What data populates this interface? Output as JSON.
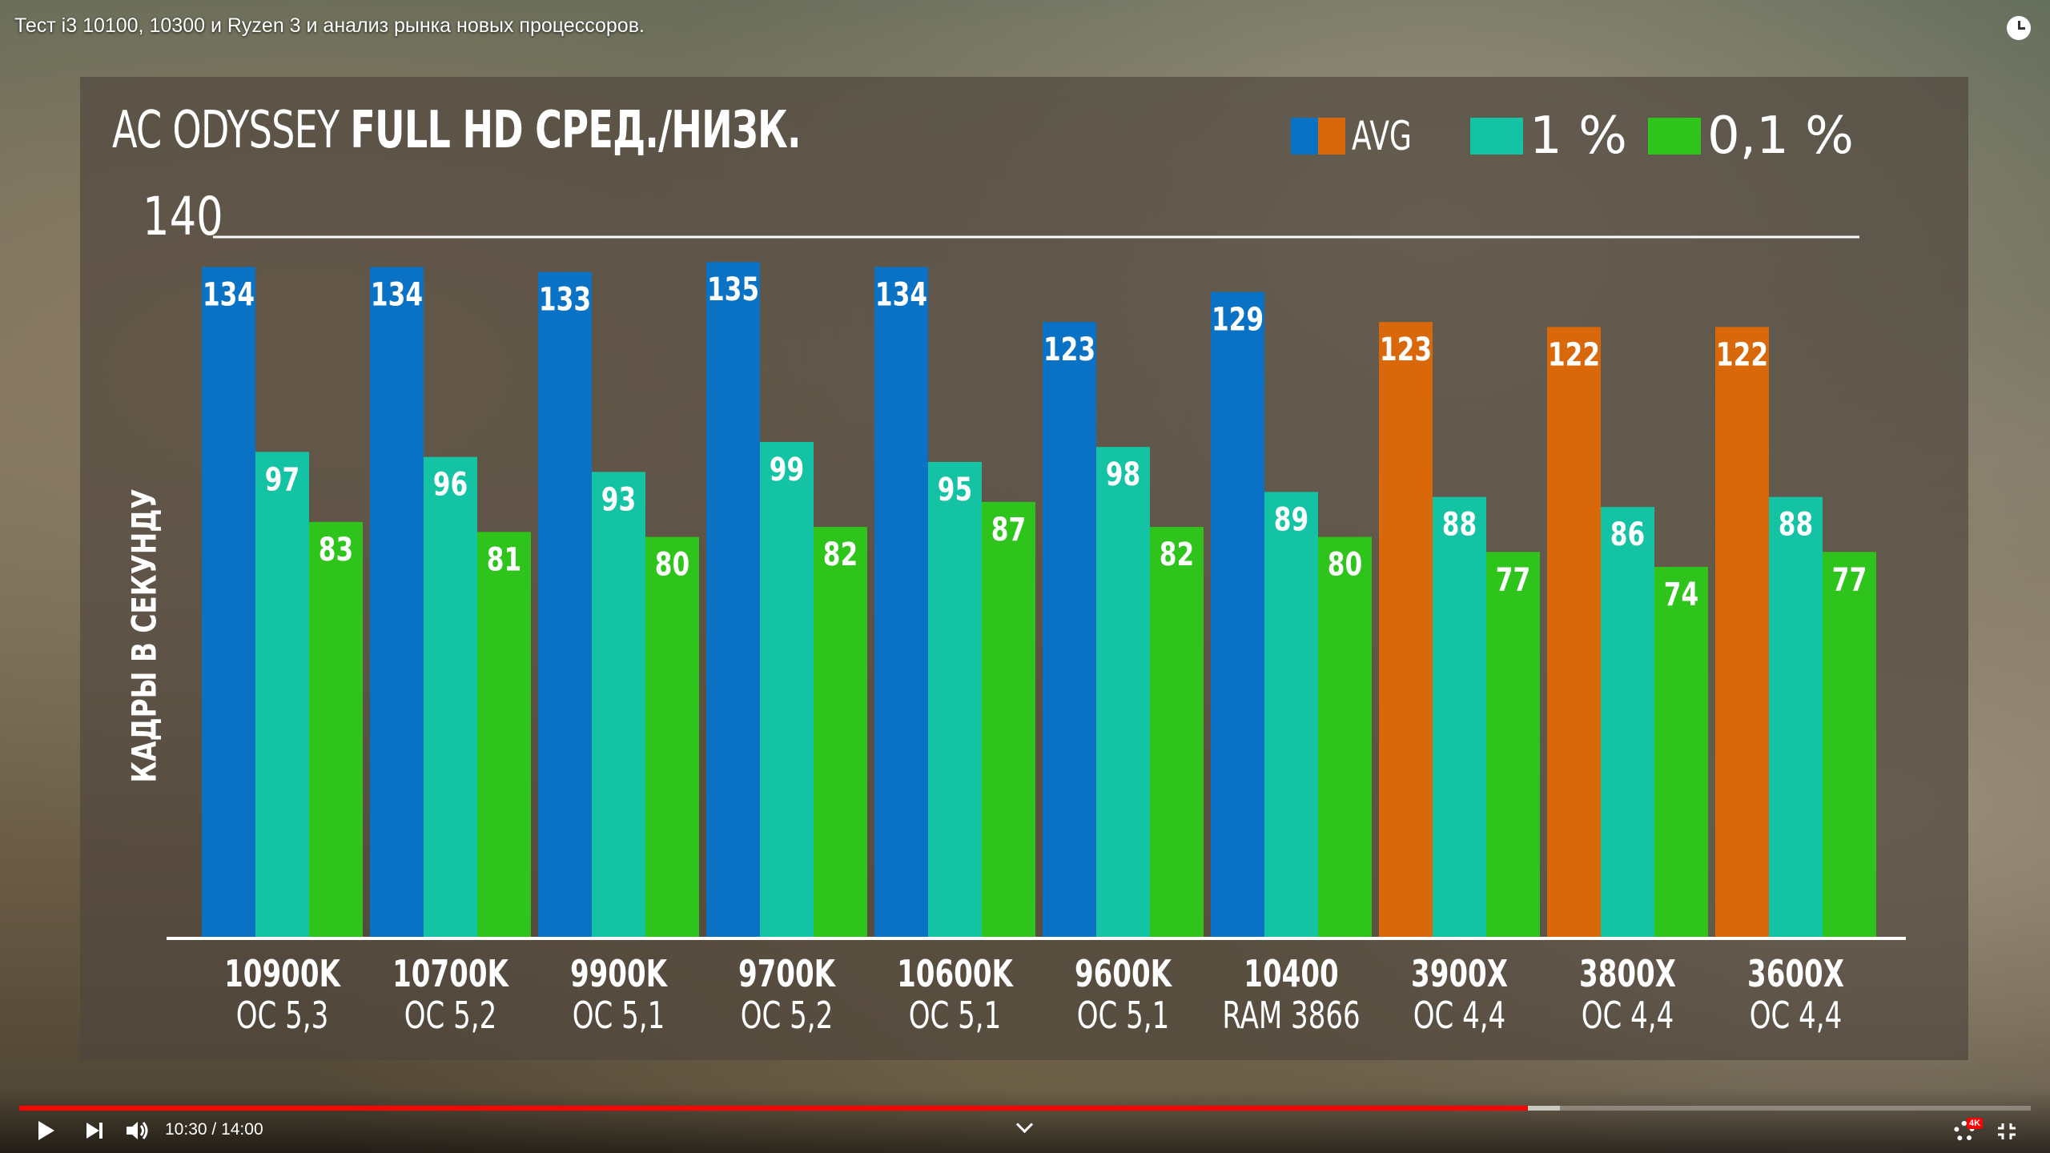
{
  "video": {
    "title": "Тест i3 10100, 10300 и Ryzen 3 и анализ рынка новых процессоров.",
    "time_current": "10:30",
    "time_total": "14:00",
    "progress_fraction": 0.75,
    "buffered_fraction": 0.766,
    "quality_badge": "4K"
  },
  "chart_data": {
    "type": "bar",
    "title_thin": "AC ODYSSEY",
    "title_bold": "FULL HD СРЕД./НИЗК.",
    "ylabel": "КАДРЫ В СЕКУНДУ",
    "ylim": [
      0,
      140
    ],
    "yticks": [
      "140"
    ],
    "legend": [
      {
        "label": "AVG",
        "colors": [
          "#0a72c4",
          "#d8680a"
        ]
      },
      {
        "label": "1 %",
        "colors": [
          "#13c3a3"
        ]
      },
      {
        "label": "0,1 %",
        "colors": [
          "#2ec41b"
        ]
      }
    ],
    "categories": [
      {
        "name": "10900K",
        "sub": "OC 5,3",
        "brand": "intel"
      },
      {
        "name": "10700K",
        "sub": "OC 5,2",
        "brand": "intel"
      },
      {
        "name": "9900K",
        "sub": "OC 5,1",
        "brand": "intel"
      },
      {
        "name": "9700K",
        "sub": "OC 5,2",
        "brand": "intel"
      },
      {
        "name": "10600K",
        "sub": "OC 5,1",
        "brand": "intel"
      },
      {
        "name": "9600K",
        "sub": "OC 5,1",
        "brand": "intel"
      },
      {
        "name": "10400",
        "sub": "RAM 3866",
        "brand": "intel"
      },
      {
        "name": "3900X",
        "sub": "OC 4,4",
        "brand": "amd"
      },
      {
        "name": "3800X",
        "sub": "OC 4,4",
        "brand": "amd"
      },
      {
        "name": "3600X",
        "sub": "OC 4,4",
        "brand": "amd"
      }
    ],
    "series": [
      {
        "name": "AVG",
        "values": [
          134,
          134,
          133,
          135,
          134,
          123,
          129,
          123,
          122,
          122
        ]
      },
      {
        "name": "1 %",
        "values": [
          97,
          96,
          93,
          99,
          95,
          98,
          89,
          88,
          86,
          88
        ]
      },
      {
        "name": "0,1 %",
        "values": [
          83,
          81,
          80,
          82,
          87,
          82,
          80,
          77,
          74,
          77
        ]
      }
    ],
    "colors": {
      "avg_intel": "#0a72c4",
      "avg_amd": "#d8680a",
      "p1": "#13c3a3",
      "p01": "#2ec41b",
      "axis": "#ffffff"
    },
    "grid": false,
    "legend_position": "top-right"
  }
}
